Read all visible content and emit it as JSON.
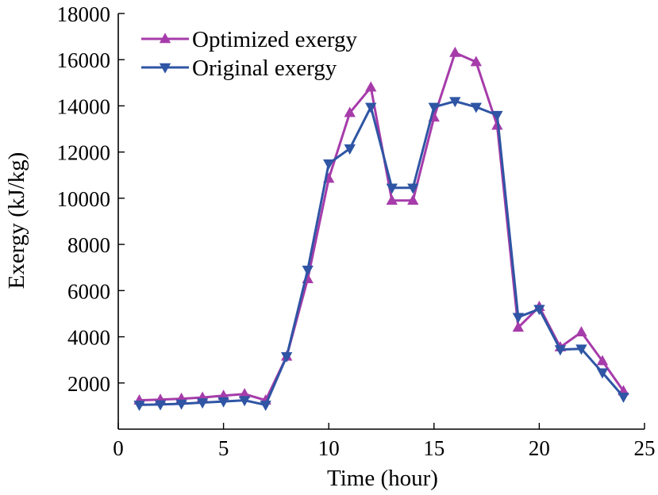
{
  "chart_data": {
    "type": "line",
    "title": "",
    "xlabel": "Time (hour)",
    "ylabel": "Exergy (kJ/kg)",
    "xlim": [
      0,
      25
    ],
    "ylim": [
      0,
      18000
    ],
    "xticks": [
      0,
      5,
      10,
      15,
      20,
      25
    ],
    "xtick_labels": [
      "0",
      "5",
      "10",
      "15",
      "20",
      "25"
    ],
    "yticks": [
      2000,
      4000,
      6000,
      8000,
      10000,
      12000,
      14000,
      16000,
      18000
    ],
    "ytick_labels": [
      "2000",
      "4000",
      "6000",
      "8000",
      "10000",
      "12000",
      "14000",
      "16000",
      "18000"
    ],
    "grid": false,
    "legend_position": "top-left",
    "x": [
      1,
      2,
      3,
      4,
      5,
      6,
      7,
      8,
      9,
      10,
      11,
      12,
      13,
      14,
      15,
      16,
      17,
      18,
      19,
      20,
      21,
      22,
      23,
      24
    ],
    "series": [
      {
        "name": "Optimized exergy",
        "color": "#a63caa",
        "marker": "triangle-up",
        "values": [
          1250,
          1280,
          1320,
          1370,
          1450,
          1520,
          1250,
          3150,
          6500,
          10850,
          13700,
          14800,
          9900,
          9900,
          13500,
          16300,
          15900,
          13150,
          4400,
          5300,
          3550,
          4200,
          2950,
          1650
        ]
      },
      {
        "name": "Original exergy",
        "color": "#2f55a4",
        "marker": "triangle-down",
        "values": [
          1050,
          1070,
          1100,
          1150,
          1200,
          1250,
          1050,
          3150,
          6900,
          11500,
          12150,
          13950,
          10450,
          10450,
          13950,
          14200,
          13950,
          13600,
          4850,
          5200,
          3450,
          3480,
          2450,
          1400
        ]
      }
    ]
  }
}
